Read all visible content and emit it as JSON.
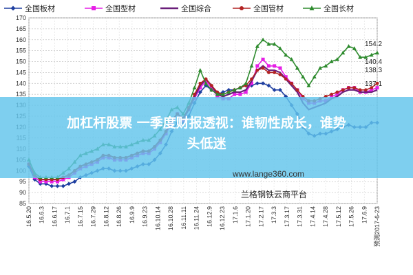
{
  "chart_data": {
    "type": "line",
    "title": "",
    "xlabel": "",
    "ylabel": "",
    "ylim": [
      85,
      170
    ],
    "yticks": [
      85,
      90,
      95,
      100,
      105,
      110,
      115,
      120,
      125,
      130,
      135,
      140,
      145,
      150,
      155,
      160,
      165,
      170
    ],
    "grid": true,
    "legend_position": "top",
    "x_tick_labels": [
      "16.5.20",
      "16.6.3",
      "16.6.17",
      "16.7.1",
      "16.7.15",
      "16.7.29",
      "16.8.12",
      "16.8.26",
      "16.9.9",
      "16.9.23",
      "16.10.14",
      "16.10.28",
      "16.11.11",
      "16.11.24",
      "16.12.9",
      "16.12.23",
      "17.1.6",
      "17.1.20",
      "17.2.17",
      "17.3.3",
      "17.3.17",
      "17.3.31",
      "17.4.14",
      "17.4.28",
      "17.5.12",
      "17.5.26",
      "17.6.9",
      "预测2017-6-23"
    ],
    "series": [
      {
        "name": "全国板材",
        "color": "#1f3fa0",
        "marker": "diamond",
        "values": [
          102,
          96,
          94,
          94,
          93,
          93,
          93,
          94,
          95,
          97,
          98,
          99,
          100,
          101,
          101,
          100,
          100,
          100,
          101,
          102,
          103,
          103,
          105,
          108,
          112,
          118,
          122,
          122,
          125,
          131,
          136,
          139,
          137,
          135,
          136,
          137,
          137,
          138,
          139,
          139,
          140,
          140,
          139,
          137,
          137,
          134,
          130,
          126,
          120,
          117,
          116,
          117,
          117,
          118,
          119,
          120,
          121,
          120,
          120,
          120,
          122,
          122
        ]
      },
      {
        "name": "全国型材",
        "color": "#e61ee6",
        "marker": "square",
        "values": [
          103,
          97,
          95,
          95,
          95,
          95,
          96,
          97,
          99,
          101,
          102,
          103,
          104,
          106,
          106,
          105,
          105,
          105,
          106,
          107,
          108,
          108,
          110,
          113,
          117,
          122,
          126,
          123,
          128,
          133,
          138,
          141,
          138,
          134,
          133,
          133,
          135,
          135,
          136,
          140,
          148,
          151,
          148,
          148,
          147,
          143,
          140,
          137,
          133,
          131,
          131,
          132,
          132,
          134,
          135,
          137,
          138,
          138,
          136,
          136,
          137,
          138
        ]
      },
      {
        "name": "全国综合",
        "color": "#6a1f7a",
        "marker": "none",
        "values": [
          103,
          98,
          96,
          96,
          96,
          96,
          97,
          98,
          100,
          102,
          103,
          104,
          105,
          107,
          107,
          106,
          106,
          106,
          107,
          108,
          109,
          109,
          111,
          114,
          118,
          123,
          126,
          124,
          128,
          134,
          139,
          142,
          139,
          135,
          134,
          135,
          136,
          136,
          137,
          141,
          146,
          148,
          146,
          146,
          145,
          142,
          139,
          136,
          131,
          128,
          129,
          130,
          131,
          133,
          134,
          136,
          137,
          137,
          136,
          136,
          136,
          137
        ]
      },
      {
        "name": "全国管材",
        "color": "#b22222",
        "marker": "circle",
        "values": [
          103,
          98,
          96,
          96,
          96,
          96,
          97,
          98,
          100,
          102,
          103,
          104,
          105,
          107,
          107,
          106,
          106,
          106,
          107,
          108,
          109,
          109,
          111,
          114,
          118,
          123,
          126,
          124,
          129,
          135,
          140,
          142,
          139,
          136,
          135,
          136,
          137,
          138,
          139,
          142,
          146,
          147,
          145,
          145,
          144,
          142,
          140,
          137,
          134,
          132,
          132,
          133,
          134,
          135,
          136,
          137,
          138,
          138,
          137,
          137,
          138,
          140
        ]
      },
      {
        "name": "全国长材",
        "color": "#2e8b2e",
        "marker": "triangle",
        "values": [
          105,
          99,
          97,
          97,
          97,
          97,
          99,
          101,
          104,
          107,
          108,
          109,
          110,
          112,
          112,
          111,
          111,
          111,
          112,
          113,
          114,
          114,
          116,
          119,
          123,
          128,
          129,
          126,
          131,
          138,
          146,
          140,
          137,
          135,
          135,
          136,
          137,
          138,
          140,
          148,
          157,
          160,
          158,
          158,
          156,
          153,
          151,
          147,
          143,
          139,
          143,
          147,
          148,
          150,
          151,
          154,
          157,
          156,
          152,
          152,
          153,
          154
        ]
      }
    ],
    "annotations": [
      "154.2",
      "140.4",
      "138.3",
      "137.1"
    ]
  },
  "headline": {
    "line1": "加杠杆股票 一季度财报透视：谁韧性成长，谁势",
    "line2": "头低迷"
  },
  "watermark": {
    "website": "www.lange360.com",
    "platform": "兰格钢铁云商平台"
  }
}
